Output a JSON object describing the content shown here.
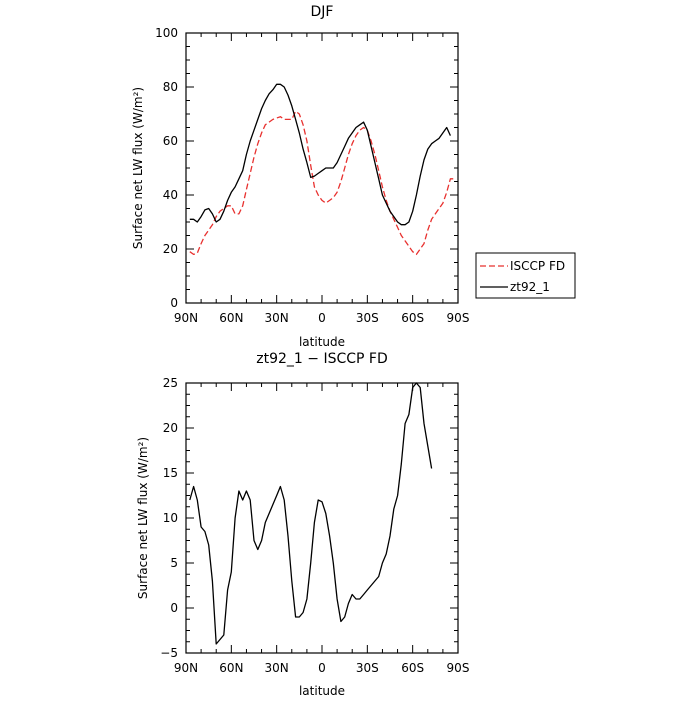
{
  "chart_data": [
    {
      "type": "line",
      "title": "DJF",
      "xlabel": "latitude",
      "ylabel": "Surface net LW flux (W/m²)",
      "xlim": [
        90,
        -90
      ],
      "ylim": [
        0,
        100
      ],
      "x_ticks": [
        90,
        60,
        30,
        0,
        -30,
        -60,
        -90
      ],
      "x_tick_labels": [
        "90N",
        "60N",
        "30N",
        "0",
        "30S",
        "60S",
        "90S"
      ],
      "y_ticks": [
        0,
        20,
        40,
        60,
        80,
        100
      ],
      "y_tick_labels": [
        "0",
        "20",
        "40",
        "60",
        "80",
        "100"
      ],
      "legend_placement": "outside-right",
      "series": [
        {
          "name": "ISCCP FD",
          "color": "#e8312f",
          "style": "dashed",
          "points": [
            [
              87.5,
              19
            ],
            [
              85,
              18
            ],
            [
              82.5,
              18.5
            ],
            [
              80,
              22
            ],
            [
              77.5,
              25
            ],
            [
              75,
              27
            ],
            [
              72.5,
              29
            ],
            [
              70,
              32
            ],
            [
              67.5,
              34
            ],
            [
              65,
              35
            ],
            [
              62.5,
              36
            ],
            [
              60,
              36
            ],
            [
              57.5,
              33
            ],
            [
              55,
              33
            ],
            [
              52.5,
              36
            ],
            [
              50,
              42
            ],
            [
              47.5,
              48
            ],
            [
              45,
              54
            ],
            [
              42.5,
              59
            ],
            [
              40,
              63
            ],
            [
              37.5,
              66
            ],
            [
              35,
              67
            ],
            [
              32.5,
              68
            ],
            [
              30,
              68.5
            ],
            [
              27.5,
              69
            ],
            [
              25,
              68
            ],
            [
              22.5,
              68
            ],
            [
              20,
              68
            ],
            [
              17.5,
              71
            ],
            [
              15,
              70
            ],
            [
              12.5,
              66
            ],
            [
              10,
              60
            ],
            [
              7.5,
              51
            ],
            [
              5,
              43
            ],
            [
              2.5,
              40
            ],
            [
              0,
              38
            ],
            [
              -2.5,
              37
            ],
            [
              -5,
              38
            ],
            [
              -7.5,
              39
            ],
            [
              -10,
              41
            ],
            [
              -12.5,
              45
            ],
            [
              -15,
              50
            ],
            [
              -17.5,
              55
            ],
            [
              -20,
              59
            ],
            [
              -22.5,
              62
            ],
            [
              -25,
              64
            ],
            [
              -27.5,
              65
            ],
            [
              -30,
              64
            ],
            [
              -32.5,
              60
            ],
            [
              -35,
              55
            ],
            [
              -37.5,
              49
            ],
            [
              -40,
              43
            ],
            [
              -42.5,
              38
            ],
            [
              -45,
              34
            ],
            [
              -47.5,
              31
            ],
            [
              -50,
              28
            ],
            [
              -52.5,
              25
            ],
            [
              -55,
              23
            ],
            [
              -57.5,
              21
            ],
            [
              -60,
              19
            ],
            [
              -62.5,
              18
            ],
            [
              -65,
              20
            ],
            [
              -67.5,
              22
            ],
            [
              -70,
              27
            ],
            [
              -72.5,
              31
            ],
            [
              -75,
              33
            ],
            [
              -77.5,
              35
            ],
            [
              -80,
              37
            ],
            [
              -82.5,
              41
            ],
            [
              -85,
              46
            ],
            [
              -87.5,
              46
            ]
          ]
        },
        {
          "name": "zt92_1",
          "color": "#000000",
          "style": "solid",
          "points": [
            [
              87.5,
              31
            ],
            [
              85,
              31
            ],
            [
              82.5,
              30
            ],
            [
              80,
              32
            ],
            [
              77.5,
              34.5
            ],
            [
              75,
              35
            ],
            [
              72.5,
              33
            ],
            [
              70,
              30
            ],
            [
              67.5,
              31
            ],
            [
              65,
              34
            ],
            [
              62.5,
              38
            ],
            [
              60,
              41
            ],
            [
              57.5,
              43
            ],
            [
              55,
              46
            ],
            [
              52.5,
              49
            ],
            [
              50,
              55
            ],
            [
              47.5,
              60
            ],
            [
              45,
              64
            ],
            [
              42.5,
              68
            ],
            [
              40,
              72
            ],
            [
              37.5,
              75
            ],
            [
              35,
              77.5
            ],
            [
              32.5,
              79
            ],
            [
              30,
              81
            ],
            [
              27.5,
              81
            ],
            [
              25,
              80
            ],
            [
              22.5,
              77
            ],
            [
              20,
              73
            ],
            [
              17.5,
              68
            ],
            [
              15,
              63
            ],
            [
              12.5,
              57
            ],
            [
              10,
              52
            ],
            [
              7.5,
              46.5
            ],
            [
              5,
              47
            ],
            [
              2.5,
              48
            ],
            [
              0,
              49
            ],
            [
              -2.5,
              50
            ],
            [
              -5,
              50
            ],
            [
              -7.5,
              50
            ],
            [
              -10,
              52
            ],
            [
              -12.5,
              55
            ],
            [
              -15,
              58
            ],
            [
              -17.5,
              61
            ],
            [
              -20,
              63
            ],
            [
              -22.5,
              65
            ],
            [
              -25,
              66
            ],
            [
              -27.5,
              67
            ],
            [
              -30,
              64
            ],
            [
              -32.5,
              58
            ],
            [
              -35,
              52
            ],
            [
              -37.5,
              46
            ],
            [
              -40,
              40
            ],
            [
              -42.5,
              37
            ],
            [
              -45,
              34
            ],
            [
              -47.5,
              32
            ],
            [
              -50,
              30
            ],
            [
              -52.5,
              29
            ],
            [
              -55,
              29
            ],
            [
              -57.5,
              30
            ],
            [
              -60,
              34
            ],
            [
              -62.5,
              40
            ],
            [
              -65,
              47
            ],
            [
              -67.5,
              53
            ],
            [
              -70,
              57
            ],
            [
              -72.5,
              59
            ],
            [
              -75,
              60
            ],
            [
              -77.5,
              61
            ],
            [
              -80,
              63
            ],
            [
              -82.5,
              65
            ],
            [
              -85,
              62
            ]
          ]
        }
      ]
    },
    {
      "type": "line",
      "title": "zt92_1 − ISCCP FD",
      "xlabel": "latitude",
      "ylabel": "Surface net LW flux (W/m²)",
      "xlim": [
        90,
        -90
      ],
      "ylim": [
        -5,
        25
      ],
      "x_ticks": [
        90,
        60,
        30,
        0,
        -30,
        -60,
        -90
      ],
      "x_tick_labels": [
        "90N",
        "60N",
        "30N",
        "0",
        "30S",
        "60S",
        "90S"
      ],
      "y_ticks": [
        -5,
        0,
        5,
        10,
        15,
        20,
        25
      ],
      "y_tick_labels": [
        "−5",
        "0",
        "5",
        "10",
        "15",
        "20",
        "25"
      ],
      "series": [
        {
          "color": "#000000",
          "style": "solid",
          "points": [
            [
              87.5,
              12
            ],
            [
              85,
              13.5
            ],
            [
              82.5,
              12
            ],
            [
              80,
              9
            ],
            [
              77.5,
              8.5
            ],
            [
              75,
              7
            ],
            [
              72.5,
              3
            ],
            [
              70,
              -4
            ],
            [
              67.5,
              -3.5
            ],
            [
              65,
              -3
            ],
            [
              62.5,
              2
            ],
            [
              60,
              4
            ],
            [
              57.5,
              10
            ],
            [
              55,
              13
            ],
            [
              52.5,
              12
            ],
            [
              50,
              13
            ],
            [
              47.5,
              12
            ],
            [
              45,
              7.5
            ],
            [
              42.5,
              6.5
            ],
            [
              40,
              7.5
            ],
            [
              37.5,
              9.5
            ],
            [
              35,
              10.5
            ],
            [
              32.5,
              11.5
            ],
            [
              30,
              12.5
            ],
            [
              27.5,
              13.5
            ],
            [
              25,
              12
            ],
            [
              22.5,
              8
            ],
            [
              20,
              3
            ],
            [
              17.5,
              -1
            ],
            [
              15,
              -1
            ],
            [
              12.5,
              -0.5
            ],
            [
              10,
              1
            ],
            [
              7.5,
              5
            ],
            [
              5,
              9.5
            ],
            [
              2.5,
              12
            ],
            [
              0,
              11.8
            ],
            [
              -2.5,
              10.5
            ],
            [
              -5,
              8
            ],
            [
              -7.5,
              5
            ],
            [
              -10,
              1
            ],
            [
              -12.5,
              -1.5
            ],
            [
              -15,
              -1
            ],
            [
              -17.5,
              0.5
            ],
            [
              -20,
              1.5
            ],
            [
              -22.5,
              1
            ],
            [
              -25,
              1
            ],
            [
              -27.5,
              1.5
            ],
            [
              -30,
              2
            ],
            [
              -32.5,
              2.5
            ],
            [
              -35,
              3
            ],
            [
              -37.5,
              3.5
            ],
            [
              -40,
              5
            ],
            [
              -42.5,
              6
            ],
            [
              -45,
              8
            ],
            [
              -47.5,
              11
            ],
            [
              -50,
              12.5
            ],
            [
              -52.5,
              16
            ],
            [
              -55,
              20.5
            ],
            [
              -57.5,
              21.5
            ],
            [
              -60,
              24.5
            ],
            [
              -62.5,
              25
            ],
            [
              -65,
              24.5
            ],
            [
              -67.5,
              20.5
            ],
            [
              -70,
              18
            ],
            [
              -72.5,
              15.5
            ]
          ]
        }
      ]
    }
  ]
}
